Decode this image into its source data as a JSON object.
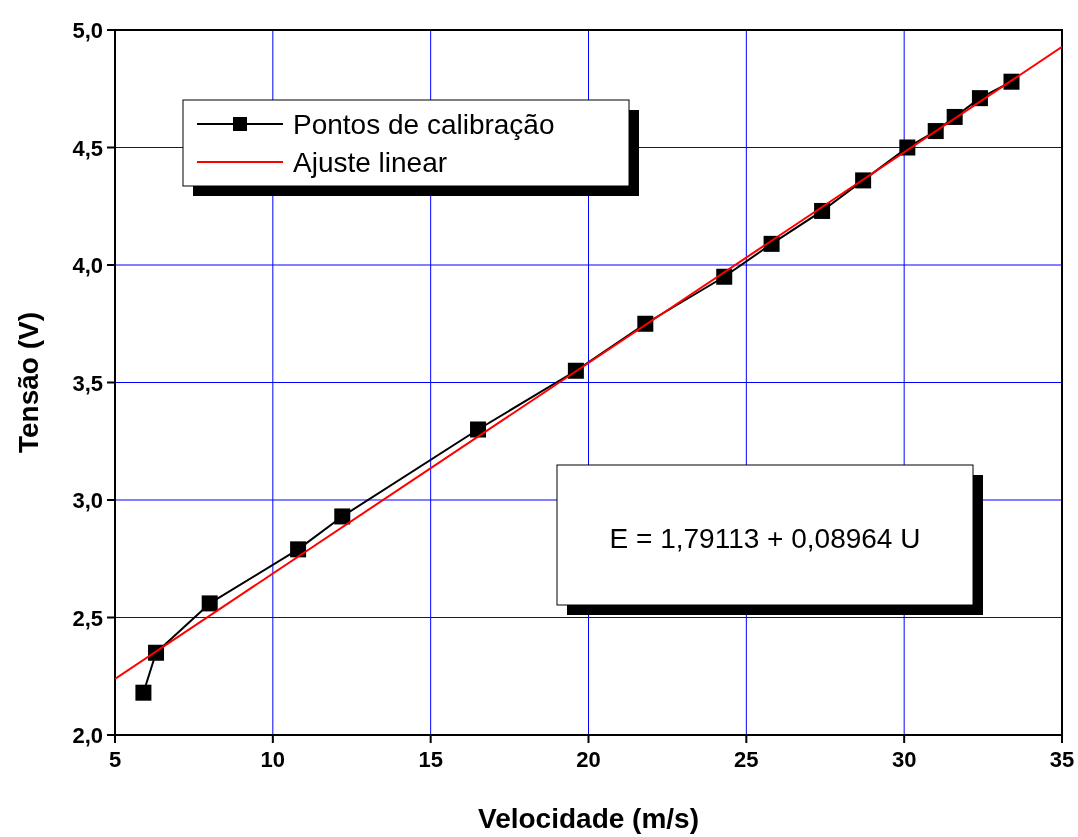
{
  "chart_data": {
    "type": "line",
    "xlabel": "Velocidade (m/s)",
    "ylabel": "Tensão (V)",
    "xlim": [
      5,
      35
    ],
    "ylim": [
      2,
      5
    ],
    "xticks": [
      {
        "value": 5,
        "label": "5"
      },
      {
        "value": 10,
        "label": "10"
      },
      {
        "value": 15,
        "label": "15"
      },
      {
        "value": 20,
        "label": "20"
      },
      {
        "value": 25,
        "label": "25"
      },
      {
        "value": 30,
        "label": "30"
      },
      {
        "value": 35,
        "label": "35"
      }
    ],
    "yticks": [
      {
        "value": 2,
        "label": "2,0"
      },
      {
        "value": 2.5,
        "label": "2,5"
      },
      {
        "value": 3,
        "label": "3,0"
      },
      {
        "value": 3.5,
        "label": "3,5"
      },
      {
        "value": 4,
        "label": "4,0"
      },
      {
        "value": 4.5,
        "label": "4,5"
      },
      {
        "value": 5,
        "label": "5,0"
      }
    ],
    "grid": true,
    "legend": "top left",
    "series": [
      {
        "name": "Pontos de calibração",
        "color": "#000000",
        "marker": "square",
        "x": [
          5.9,
          6.3,
          8.0,
          10.8,
          12.2,
          16.5,
          19.6,
          21.8,
          24.3,
          25.8,
          27.4,
          28.7,
          30.1,
          31.0,
          31.6,
          32.4,
          33.4
        ],
        "values": [
          2.18,
          2.35,
          2.56,
          2.79,
          2.93,
          3.3,
          3.55,
          3.75,
          3.95,
          4.09,
          4.23,
          4.36,
          4.5,
          4.57,
          4.63,
          4.71,
          4.78
        ]
      },
      {
        "name": "Ajuste linear",
        "color": "#ff0000",
        "marker": "none",
        "x": [
          5,
          35
        ],
        "values": [
          2.239,
          4.928
        ]
      }
    ],
    "annotations": [
      "E = 1,79113 + 0,08964 U"
    ]
  }
}
